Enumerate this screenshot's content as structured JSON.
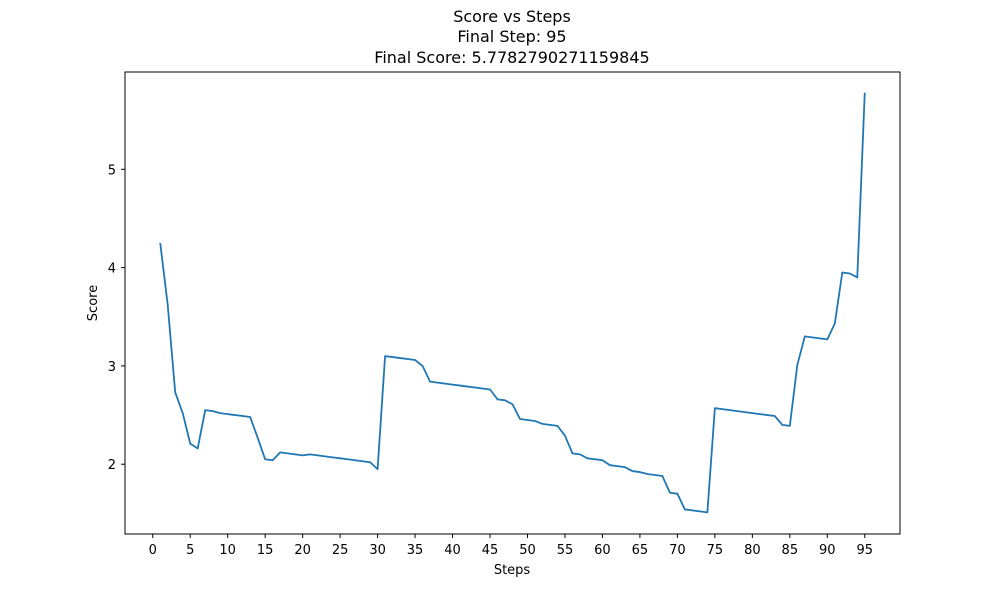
{
  "chart_data": {
    "type": "line",
    "title_lines": [
      "Score vs Steps",
      "Final Step: 95",
      "Final Score: 5.7782790271159845"
    ],
    "xlabel": "Steps",
    "ylabel": "Score",
    "xlim": [
      -3.7,
      99.7
    ],
    "ylim": [
      1.29,
      5.99
    ],
    "xticks": [
      0,
      5,
      10,
      15,
      20,
      25,
      30,
      35,
      40,
      45,
      50,
      55,
      60,
      65,
      70,
      75,
      80,
      85,
      90,
      95
    ],
    "yticks": [
      2,
      3,
      4,
      5
    ],
    "grid": false,
    "line_color": "#1f77b4",
    "series": [
      {
        "x": [
          1,
          2,
          3,
          4,
          5,
          6,
          7,
          8,
          9,
          10,
          11,
          12,
          13,
          14,
          15,
          16,
          17,
          18,
          19,
          20,
          21,
          22,
          23,
          24,
          25,
          26,
          27,
          28,
          29,
          30,
          31,
          32,
          33,
          34,
          35,
          36,
          37,
          38,
          39,
          40,
          41,
          42,
          43,
          44,
          45,
          46,
          47,
          48,
          49,
          50,
          51,
          52,
          53,
          54,
          55,
          56,
          57,
          58,
          59,
          60,
          61,
          62,
          63,
          64,
          65,
          66,
          67,
          68,
          69,
          70,
          71,
          72,
          73,
          74,
          75,
          76,
          77,
          78,
          79,
          80,
          81,
          82,
          83,
          84,
          85,
          86,
          87,
          88,
          89,
          90,
          91,
          92,
          93,
          94,
          95
        ],
        "values": [
          4.25,
          3.62,
          2.73,
          2.52,
          2.21,
          2.16,
          2.55,
          2.54,
          2.52,
          2.51,
          2.5,
          2.49,
          2.48,
          2.27,
          2.05,
          2.04,
          2.12,
          2.11,
          2.1,
          2.09,
          2.1,
          2.09,
          2.08,
          2.07,
          2.06,
          2.05,
          2.04,
          2.03,
          2.02,
          1.95,
          3.1,
          3.09,
          3.08,
          3.07,
          3.06,
          3.0,
          2.84,
          2.83,
          2.82,
          2.81,
          2.8,
          2.79,
          2.78,
          2.77,
          2.76,
          2.66,
          2.65,
          2.61,
          2.46,
          2.45,
          2.44,
          2.41,
          2.4,
          2.39,
          2.29,
          2.11,
          2.1,
          2.06,
          2.05,
          2.04,
          1.99,
          1.98,
          1.97,
          1.93,
          1.92,
          1.9,
          1.89,
          1.88,
          1.71,
          1.7,
          1.54,
          1.53,
          1.52,
          1.51,
          2.57,
          2.56,
          2.55,
          2.54,
          2.53,
          2.52,
          2.51,
          2.5,
          2.49,
          2.4,
          2.39,
          3.01,
          3.3,
          3.29,
          3.28,
          3.27,
          3.43,
          3.95,
          3.94,
          3.9,
          5.78
        ]
      }
    ]
  }
}
